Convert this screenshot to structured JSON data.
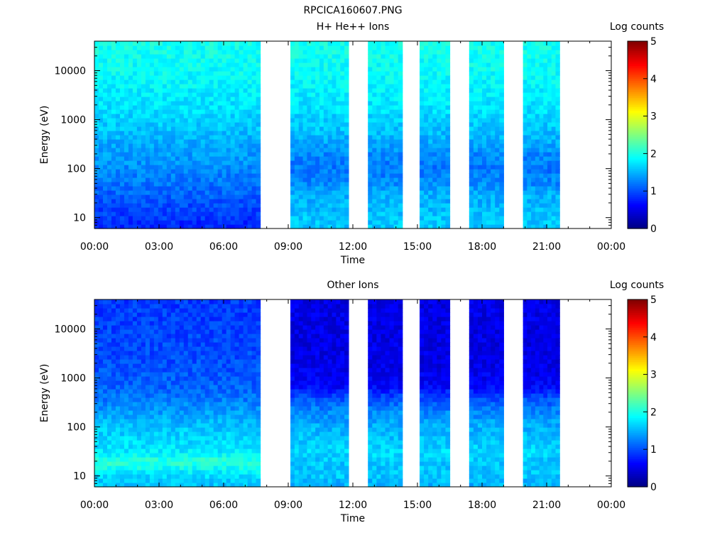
{
  "figure_title": "RPCICA160607.PNG",
  "colors": {
    "background": "#ffffff",
    "axis": "#000000"
  },
  "chart_data": [
    {
      "type": "heatmap",
      "title": "H+ He++ Ions",
      "xlabel": "Time",
      "ylabel": "Energy (eV)",
      "x_scale": "time",
      "xlim_hours": [
        0,
        24
      ],
      "x_ticks_hours": [
        0,
        3,
        6,
        9,
        12,
        15,
        18,
        21,
        24
      ],
      "x_tick_labels": [
        "00:00",
        "03:00",
        "06:00",
        "09:00",
        "12:00",
        "15:00",
        "18:00",
        "21:00",
        "00:00"
      ],
      "y_scale": "log",
      "ylim": [
        6,
        40000
      ],
      "y_ticks": [
        10,
        100,
        1000,
        10000
      ],
      "y_tick_labels": [
        "10",
        "100",
        "1000",
        "10000"
      ],
      "data_intervals_hours": [
        [
          0,
          7.7
        ],
        [
          9.1,
          11.8
        ],
        [
          12.7,
          14.3
        ],
        [
          15.1,
          16.5
        ],
        [
          17.4,
          19.0
        ],
        [
          19.9,
          21.6
        ]
      ],
      "colorbar": {
        "label": "Log counts",
        "range": [
          0,
          5
        ],
        "ticks": [
          0,
          1,
          2,
          3,
          4,
          5
        ],
        "colormap": "jet"
      },
      "log_counts_by_energy": {
        "energy_eV": [
          7,
          10,
          20,
          30,
          50,
          100,
          200,
          400,
          700,
          2000,
          10000,
          30000
        ],
        "first_interval": [
          0.8,
          0.9,
          1.0,
          1.1,
          1.2,
          1.3,
          1.4,
          1.5,
          1.6,
          1.75,
          1.9,
          1.95
        ],
        "later_intervals": [
          1.6,
          1.6,
          1.5,
          1.5,
          1.3,
          1.2,
          1.3,
          1.5,
          1.6,
          1.75,
          1.9,
          1.95
        ]
      }
    },
    {
      "type": "heatmap",
      "title": "Other Ions",
      "xlabel": "Time",
      "ylabel": "Energy (eV)",
      "x_scale": "time",
      "xlim_hours": [
        0,
        24
      ],
      "x_ticks_hours": [
        0,
        3,
        6,
        9,
        12,
        15,
        18,
        21,
        24
      ],
      "x_tick_labels": [
        "00:00",
        "03:00",
        "06:00",
        "09:00",
        "12:00",
        "15:00",
        "18:00",
        "21:00",
        "00:00"
      ],
      "y_scale": "log",
      "ylim": [
        6,
        40000
      ],
      "y_ticks": [
        10,
        100,
        1000,
        10000
      ],
      "y_tick_labels": [
        "10",
        "100",
        "1000",
        "10000"
      ],
      "data_intervals_hours": [
        [
          0,
          7.7
        ],
        [
          9.1,
          11.8
        ],
        [
          12.7,
          14.3
        ],
        [
          15.1,
          16.5
        ],
        [
          17.4,
          19.0
        ],
        [
          19.9,
          21.6
        ]
      ],
      "colorbar": {
        "label": "Log counts",
        "range": [
          0,
          5
        ],
        "ticks": [
          0,
          1,
          2,
          3,
          4,
          5
        ],
        "colormap": "jet"
      },
      "log_counts_by_energy": {
        "energy_eV": [
          7,
          10,
          20,
          30,
          50,
          100,
          200,
          400,
          700,
          2000,
          10000,
          30000
        ],
        "first_interval": [
          1.6,
          1.7,
          2.1,
          1.8,
          1.7,
          1.6,
          1.4,
          1.2,
          1.1,
          1.0,
          0.95,
          0.9
        ],
        "later_intervals": [
          1.5,
          1.6,
          1.6,
          1.7,
          1.6,
          1.5,
          1.3,
          1.0,
          0.6,
          0.5,
          0.5,
          0.5
        ]
      }
    }
  ]
}
